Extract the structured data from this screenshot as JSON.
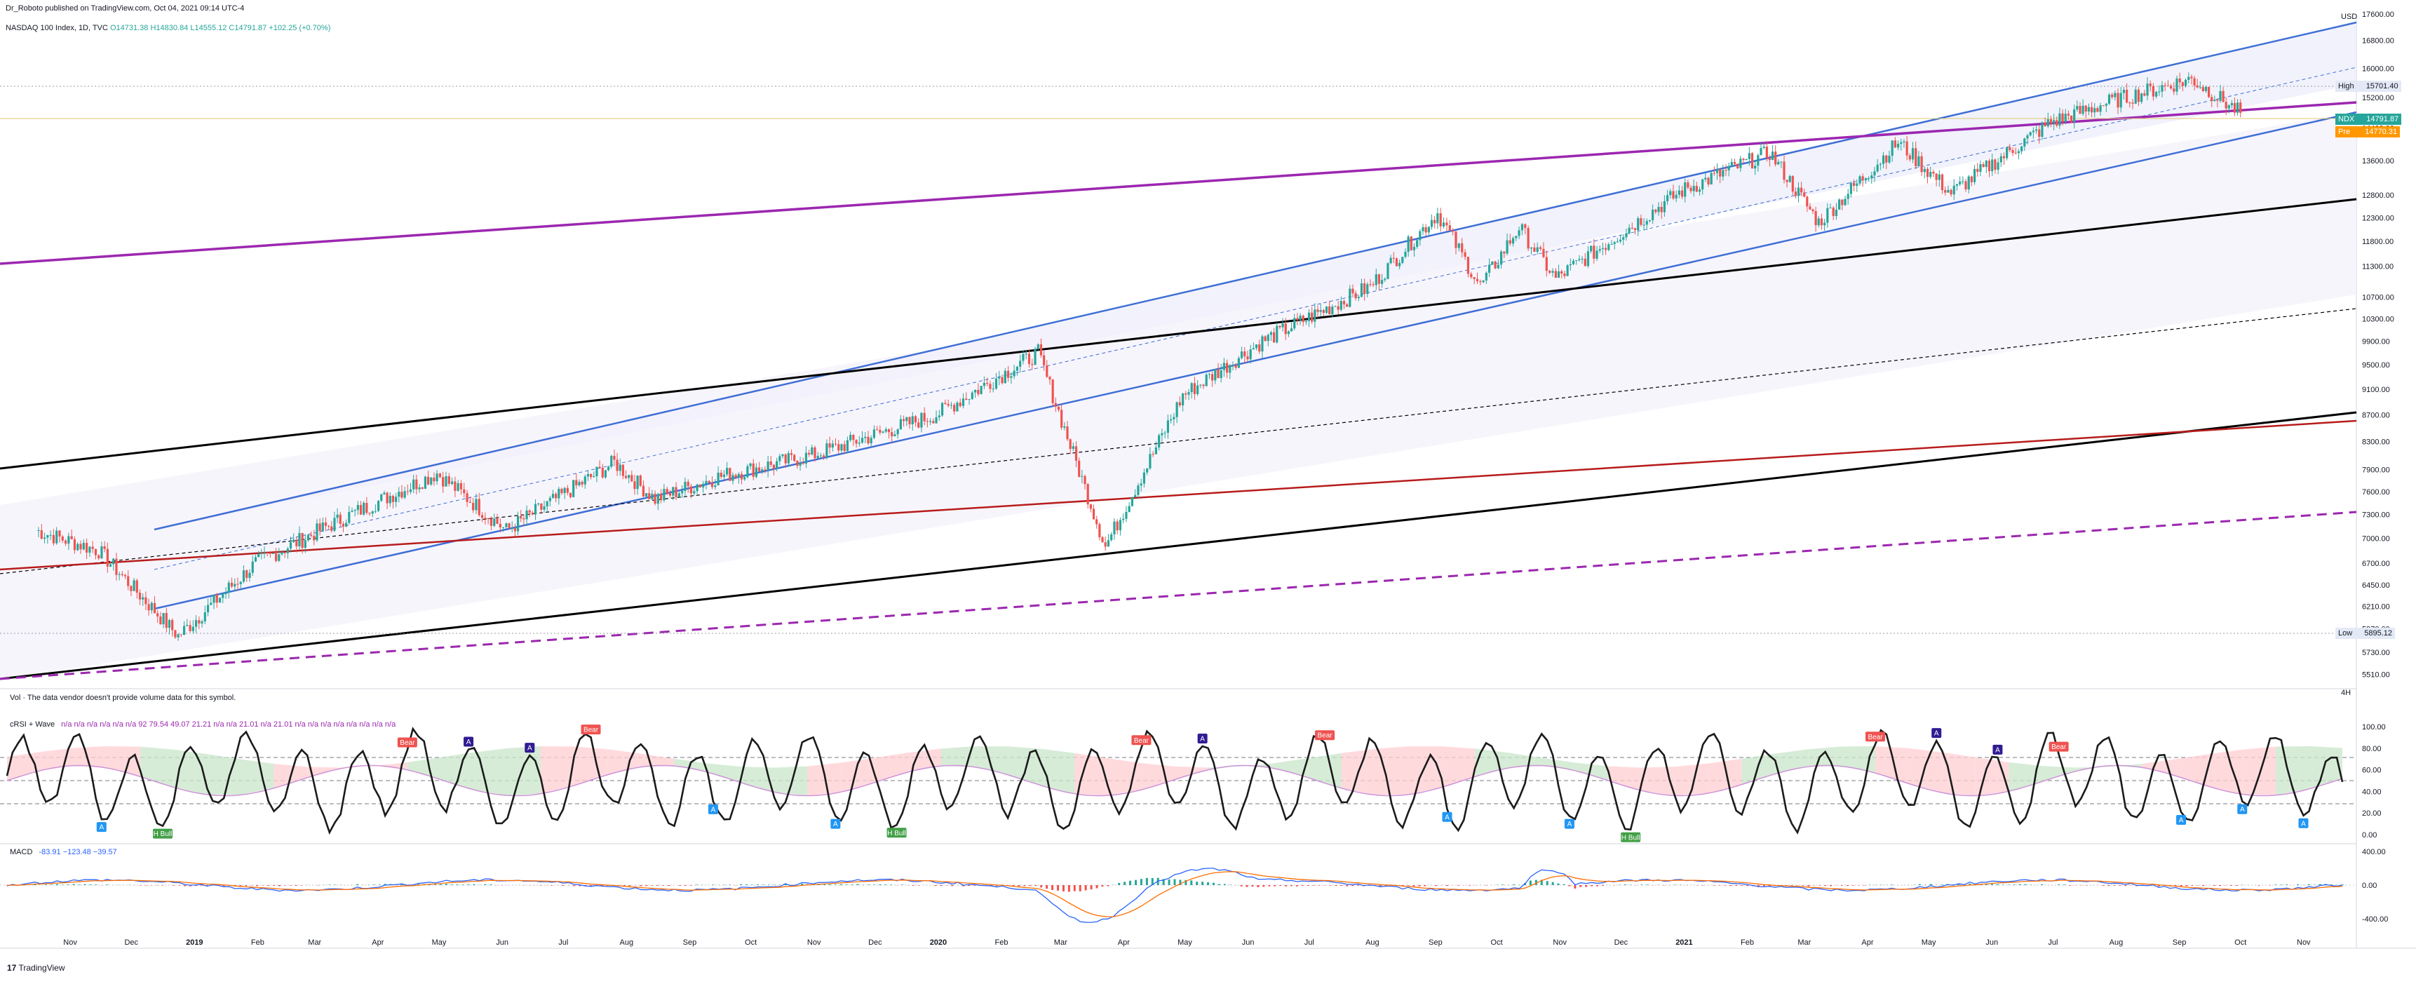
{
  "header": {
    "publisher": "Dr_Roboto published on TradingView.com, Oct 04, 2021 09:14 UTC-4",
    "symbol": "NASDAQ 100 Index, 1D, TVC",
    "ohlc": "O14731.38 H14830.84 L14555.12 C14791.87 +102.25 (+0.70%)"
  },
  "price_axis": {
    "currency": "USD",
    "ticks": [
      "17600.00",
      "16800.00",
      "16000.00",
      "15200.00",
      "14400.00",
      "13600.00",
      "12800.00",
      "12300.00",
      "11800.00",
      "11300.00",
      "10700.00",
      "10300.00",
      "9900.00",
      "9500.00",
      "9100.00",
      "8700.00",
      "8300.00",
      "7900.00",
      "7600.00",
      "7300.00",
      "7000.00",
      "6700.00",
      "6450.00",
      "6210.00",
      "5970.00",
      "5730.00",
      "5510.00"
    ],
    "high_label": "High",
    "high_value": "15701.40",
    "low_label": "Low",
    "low_value": "5895.12",
    "last_label": "NDX",
    "last_value": "14791.87",
    "pre_label": "Pre",
    "pre_value": "14770.31"
  },
  "volume_note": "Vol · The data vendor doesn't provide volume data for this symbol.",
  "cwave": {
    "label": "cRSI + Wave",
    "values": "n/a n/a n/a n/a n/a n/a 92 79.54 49.07 21.21 n/a n/a 21.01 n/a 21.01 n/a n/a n/a n/a n/a n/a n/a n/a",
    "ticks": [
      "100.00",
      "80.00",
      "60.00",
      "40.00",
      "20.00",
      "0.00"
    ]
  },
  "macd": {
    "label": "MACD",
    "values": "-83.91 −123.48 −39.57",
    "ticks": [
      "400.00",
      "0.00",
      "-400.00"
    ]
  },
  "time_axis": [
    "Nov",
    "Dec",
    "2019",
    "Feb",
    "Mar",
    "Apr",
    "May",
    "Jun",
    "Jul",
    "Aug",
    "Sep",
    "Oct",
    "Nov",
    "Dec",
    "2020",
    "Feb",
    "Mar",
    "Apr",
    "May",
    "Jun",
    "Jul",
    "Aug",
    "Sep",
    "Oct",
    "Nov",
    "Dec",
    "2021",
    "Feb",
    "Mar",
    "Apr",
    "May",
    "Jun",
    "Jul",
    "Aug",
    "Sep",
    "Oct",
    "Nov"
  ],
  "brand": "TradingView",
  "chart_data": {
    "type": "line",
    "title": "NASDAQ 100 Index, 1D, TVC",
    "x_range": [
      "2018-10",
      "2021-11"
    ],
    "ylim": [
      5400,
      17600
    ],
    "y_scale": "log",
    "series": [
      {
        "name": "NDX",
        "x": [
          "2018-10-15",
          "2018-11-15",
          "2018-12-24",
          "2019-01-31",
          "2019-03-15",
          "2019-04-30",
          "2019-06-03",
          "2019-07-26",
          "2019-08-15",
          "2019-09-15",
          "2019-10-31",
          "2019-12-31",
          "2020-02-19",
          "2020-03-23",
          "2020-04-30",
          "2020-06-08",
          "2020-07-31",
          "2020-09-02",
          "2020-09-23",
          "2020-10-12",
          "2020-10-30",
          "2020-12-31",
          "2021-02-12",
          "2021-03-08",
          "2021-04-16",
          "2021-05-12",
          "2021-06-30",
          "2021-07-30",
          "2021-09-07",
          "2021-10-01"
        ],
        "values": [
          7100,
          6850,
          5895,
          6700,
          7250,
          7850,
          7100,
          8000,
          7500,
          7800,
          8100,
          8700,
          9700,
          6900,
          9000,
          9900,
          10900,
          12400,
          10900,
          12100,
          11050,
          12900,
          13800,
          12200,
          14050,
          12850,
          14550,
          15100,
          15701,
          14792
        ]
      }
    ],
    "annotations": [
      "Bear",
      "H Bull",
      "Bull",
      "A",
      "B",
      "C",
      "D",
      "E"
    ]
  },
  "colors": {
    "bull": "#26a69a",
    "bear": "#ef5350",
    "channel": "#3f6fd6",
    "purple": "#9c27b0",
    "dark_red": "#b71c1c",
    "black": "#000000",
    "pre": "#ff9800",
    "last": "#26a69a",
    "macd": "#2962ff",
    "signal": "#ff6d00"
  }
}
